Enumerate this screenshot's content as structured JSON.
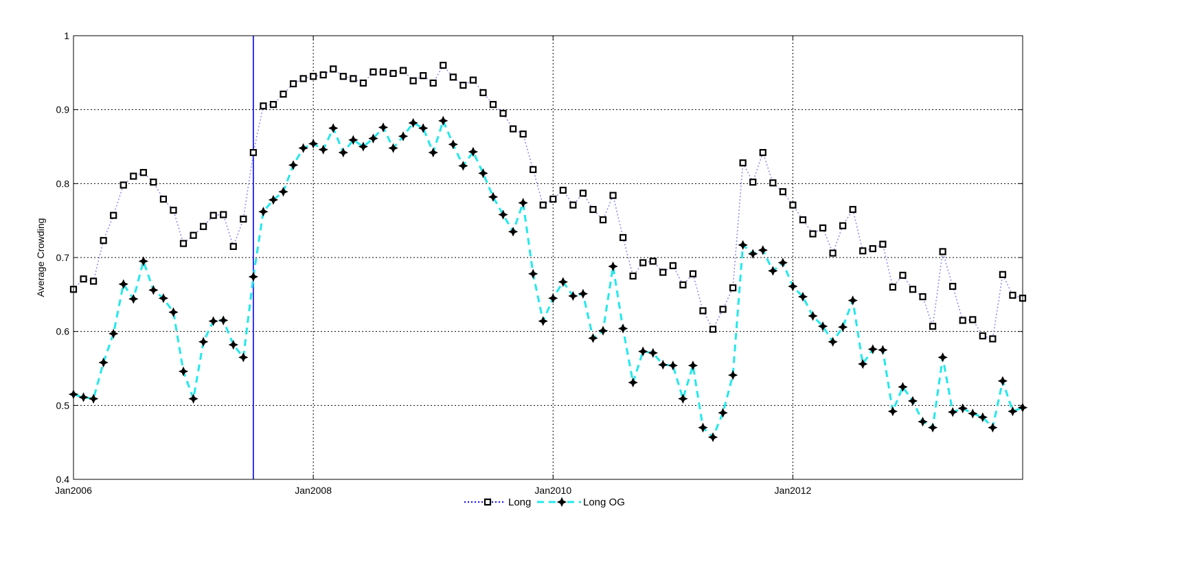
{
  "chart_data": {
    "type": "line",
    "ylabel": "Average Crowding",
    "xlabel": "",
    "title": "",
    "ylim": [
      0.4,
      1.0
    ],
    "yticks": [
      0.4,
      0.5,
      0.6,
      0.7,
      0.8,
      0.9,
      1.0
    ],
    "ytick_labels": [
      "0.4",
      "0.5",
      "0.6",
      "0.7",
      "0.8",
      "0.9",
      "1"
    ],
    "xtick_labels": [
      "Jan2006",
      "Jan2008",
      "Jan2010",
      "Jan2012"
    ],
    "x_start": "Jan2006",
    "x_end": "Dec2013",
    "grid": true,
    "legend": "bottom-center",
    "vertical_marker": "Jul2007",
    "colors": {
      "long": "#000000",
      "long_line": "#8f8ff0",
      "long_og": "#000000",
      "long_og_line": "#22e8ec",
      "marker_line": "#0000ff"
    },
    "series": [
      {
        "name": "Long",
        "style": "dotted-square",
        "values": [
          0.657,
          0.671,
          0.668,
          0.723,
          0.757,
          0.798,
          0.81,
          0.815,
          0.802,
          0.779,
          0.764,
          0.719,
          0.73,
          0.742,
          0.757,
          0.758,
          0.715,
          0.752,
          0.842,
          0.905,
          0.907,
          0.921,
          0.935,
          0.942,
          0.945,
          0.947,
          0.955,
          0.945,
          0.942,
          0.936,
          0.951,
          0.951,
          0.949,
          0.953,
          0.939,
          0.946,
          0.936,
          0.96,
          0.944,
          0.933,
          0.94,
          0.923,
          0.907,
          0.895,
          0.874,
          0.867,
          0.819,
          0.771,
          0.779,
          0.791,
          0.771,
          0.787,
          0.765,
          0.751,
          0.784,
          0.727,
          0.675,
          0.693,
          0.695,
          0.68,
          0.689,
          0.663,
          0.678,
          0.628,
          0.603,
          0.63,
          0.659,
          0.828,
          0.802,
          0.842,
          0.801,
          0.789,
          0.771,
          0.751,
          0.732,
          0.74,
          0.706,
          0.743,
          0.765,
          0.709,
          0.712,
          0.718,
          0.66,
          0.676,
          0.657,
          0.647,
          0.607,
          0.708,
          0.661,
          0.615,
          0.616,
          0.594,
          0.59,
          0.677,
          0.649,
          0.645
        ]
      },
      {
        "name": "Long OG",
        "style": "dashed-star",
        "values": [
          0.515,
          0.511,
          0.509,
          0.558,
          0.597,
          0.664,
          0.644,
          0.695,
          0.656,
          0.645,
          0.626,
          0.546,
          0.509,
          0.586,
          0.614,
          0.615,
          0.582,
          0.565,
          0.674,
          0.762,
          0.778,
          0.789,
          0.825,
          0.848,
          0.854,
          0.846,
          0.875,
          0.842,
          0.859,
          0.85,
          0.861,
          0.876,
          0.848,
          0.864,
          0.882,
          0.875,
          0.842,
          0.885,
          0.853,
          0.824,
          0.843,
          0.814,
          0.782,
          0.758,
          0.735,
          0.774,
          0.678,
          0.614,
          0.645,
          0.667,
          0.648,
          0.651,
          0.591,
          0.601,
          0.688,
          0.604,
          0.531,
          0.573,
          0.571,
          0.555,
          0.554,
          0.509,
          0.554,
          0.47,
          0.457,
          0.49,
          0.541,
          0.717,
          0.705,
          0.71,
          0.682,
          0.693,
          0.661,
          0.647,
          0.621,
          0.607,
          0.586,
          0.606,
          0.642,
          0.556,
          0.576,
          0.575,
          0.492,
          0.525,
          0.506,
          0.478,
          0.47,
          0.565,
          0.491,
          0.496,
          0.489,
          0.484,
          0.47,
          0.533,
          0.492,
          0.497
        ]
      }
    ]
  }
}
